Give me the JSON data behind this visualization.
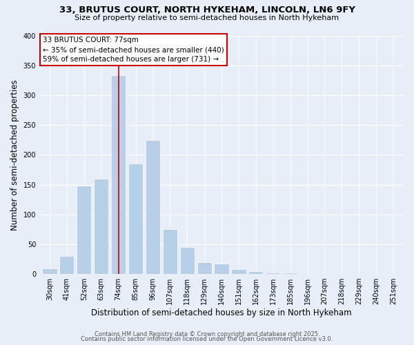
{
  "title": "33, BRUTUS COURT, NORTH HYKEHAM, LINCOLN, LN6 9FY",
  "subtitle": "Size of property relative to semi-detached houses in North Hykeham",
  "xlabel": "Distribution of semi-detached houses by size in North Hykeham",
  "ylabel": "Number of semi-detached properties",
  "bar_labels": [
    "30sqm",
    "41sqm",
    "52sqm",
    "63sqm",
    "74sqm",
    "85sqm",
    "96sqm",
    "107sqm",
    "118sqm",
    "129sqm",
    "140sqm",
    "151sqm",
    "162sqm",
    "173sqm",
    "185sqm",
    "196sqm",
    "207sqm",
    "218sqm",
    "229sqm",
    "240sqm",
    "251sqm"
  ],
  "bar_values": [
    10,
    30,
    148,
    160,
    333,
    185,
    225,
    75,
    45,
    20,
    18,
    8,
    5,
    3,
    2,
    0,
    0,
    0,
    0,
    0,
    0
  ],
  "bar_color": "#b8cfe8",
  "red_line_index": 4,
  "ylim": [
    0,
    400
  ],
  "yticks": [
    0,
    50,
    100,
    150,
    200,
    250,
    300,
    350,
    400
  ],
  "annotation_title": "33 BRUTUS COURT: 77sqm",
  "annotation_line1": "← 35% of semi-detached houses are smaller (440)",
  "annotation_line2": "59% of semi-detached houses are larger (731) →",
  "footer1": "Contains HM Land Registry data © Crown copyright and database right 2025.",
  "footer2": "Contains public sector information licensed under the Open Government Licence v3.0.",
  "background_color": "#e8eef7",
  "grid_color": "#ffffff",
  "title_fontsize": 9.5,
  "subtitle_fontsize": 8,
  "axis_label_fontsize": 8.5,
  "tick_fontsize": 7,
  "annotation_fontsize": 7.5,
  "footer_fontsize": 6
}
